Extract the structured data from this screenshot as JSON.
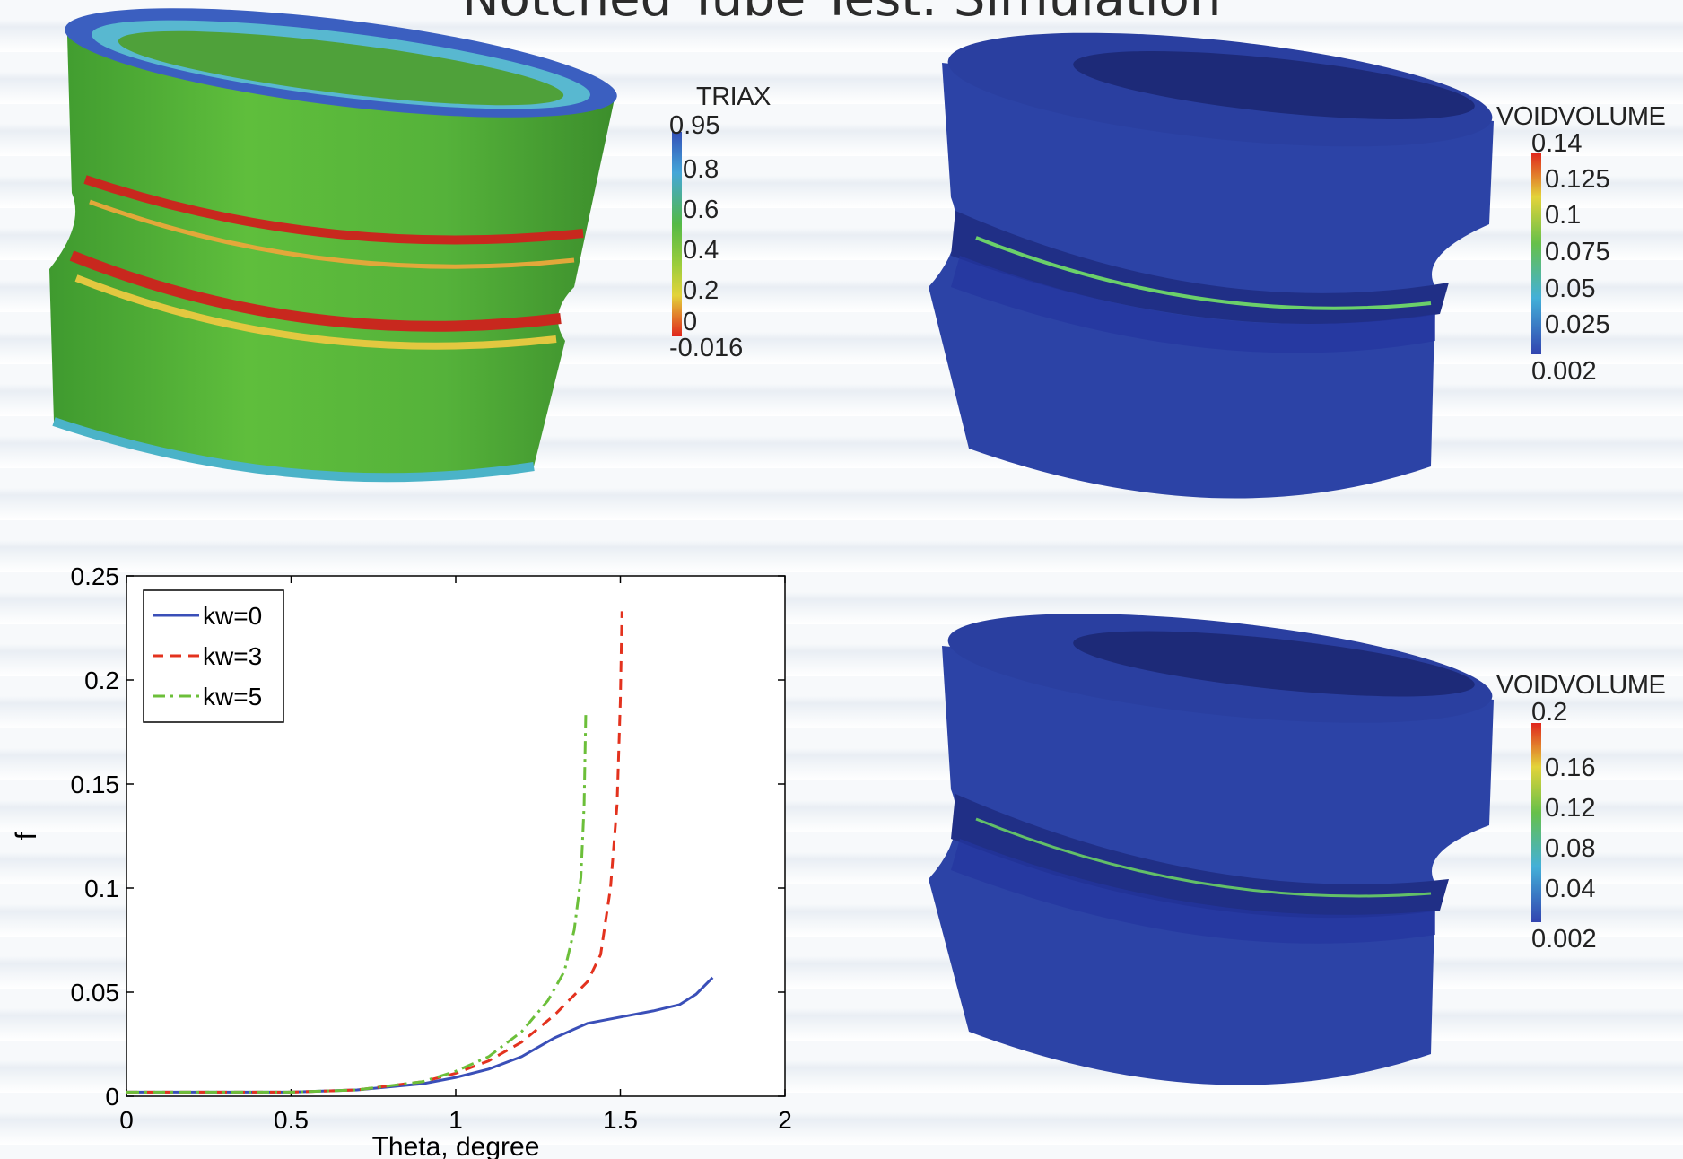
{
  "page": {
    "title": "Notched Tube Test: Simulation"
  },
  "triax_panel": {
    "legend_title": "TRIAX",
    "ticks": [
      "0.95",
      "0.8",
      "0.6",
      "0.4",
      "0.2",
      "0",
      "-0.016"
    ]
  },
  "void_panel_1": {
    "legend_title": "VOIDVOLUME",
    "ticks": [
      "0.14",
      "0.125",
      "0.1",
      "0.075",
      "0.05",
      "0.025",
      "0.002"
    ]
  },
  "void_panel_2": {
    "legend_title": "VOIDVOLUME",
    "ticks": [
      "0.2",
      "0.16",
      "0.12",
      "0.08",
      "0.04",
      "0.002"
    ]
  },
  "chart_data": {
    "type": "line",
    "xlabel": "Theta, degree",
    "ylabel": "f",
    "xlim": [
      0,
      2
    ],
    "ylim": [
      0,
      0.25
    ],
    "xticks": [
      0,
      0.5,
      1,
      1.5,
      2
    ],
    "xtick_labels": [
      "0",
      "0.5",
      "1",
      "1.5",
      "2"
    ],
    "yticks": [
      0,
      0.05,
      0.1,
      0.15,
      0.2,
      0.25
    ],
    "ytick_labels": [
      "0",
      "0.05",
      "0.1",
      "0.15",
      "0.2",
      "0.25"
    ],
    "legend_position": "top-left",
    "series": [
      {
        "name": "kw=0",
        "color": "#3a4fb8",
        "dash": "solid",
        "x": [
          0,
          0.5,
          0.7,
          0.9,
          1.0,
          1.1,
          1.2,
          1.3,
          1.4,
          1.5,
          1.6,
          1.68,
          1.73,
          1.78
        ],
        "y": [
          0.002,
          0.002,
          0.003,
          0.006,
          0.009,
          0.013,
          0.019,
          0.028,
          0.035,
          0.038,
          0.041,
          0.044,
          0.049,
          0.057
        ]
      },
      {
        "name": "kw=3",
        "color": "#e3321e",
        "dash": "dashed",
        "x": [
          0,
          0.5,
          0.7,
          0.9,
          1.0,
          1.1,
          1.2,
          1.3,
          1.4,
          1.44,
          1.47,
          1.49,
          1.5,
          1.505
        ],
        "y": [
          0.002,
          0.002,
          0.003,
          0.007,
          0.011,
          0.017,
          0.026,
          0.039,
          0.055,
          0.068,
          0.1,
          0.14,
          0.19,
          0.233
        ]
      },
      {
        "name": "kw=5",
        "color": "#6cbf3a",
        "dash": "dashdot",
        "x": [
          0,
          0.5,
          0.7,
          0.9,
          1.0,
          1.1,
          1.2,
          1.28,
          1.33,
          1.36,
          1.38,
          1.39,
          1.395
        ],
        "y": [
          0.002,
          0.002,
          0.003,
          0.007,
          0.012,
          0.019,
          0.031,
          0.046,
          0.06,
          0.08,
          0.105,
          0.14,
          0.185
        ]
      }
    ]
  }
}
